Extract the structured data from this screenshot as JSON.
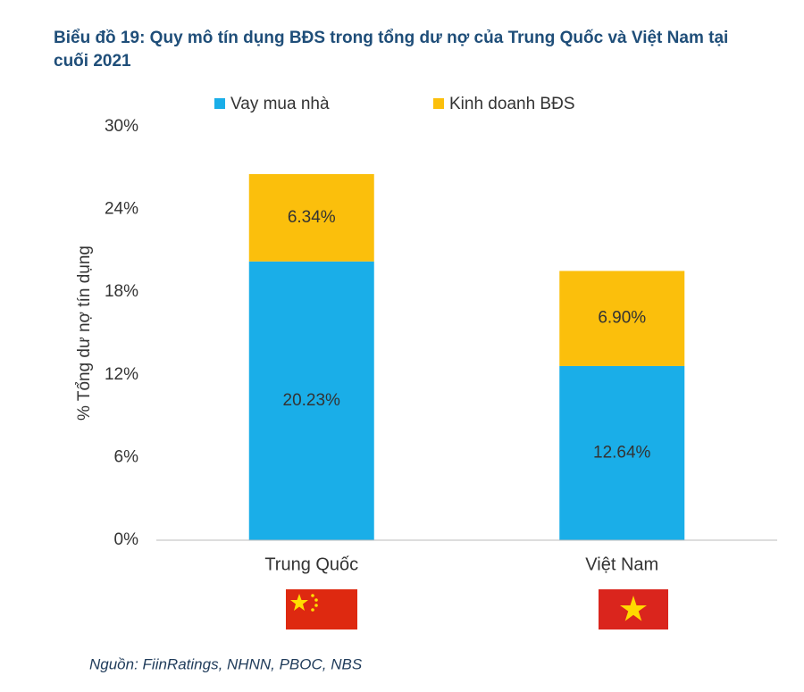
{
  "chart_data": {
    "type": "stacked_bar",
    "title": "Biểu đồ 19: Quy mô tín dụng BĐS trong tổng dư nợ của Trung Quốc và Việt Nam tại cuối 2021",
    "ylabel": "% Tổng dư nợ tín dụng",
    "categories": [
      "Trung Quốc",
      "Việt Nam"
    ],
    "series": [
      {
        "name": "Vay mua nhà",
        "color": "#1aaee8",
        "values": [
          20.23,
          12.64
        ],
        "value_labels": [
          "20.23%",
          "12.64%"
        ]
      },
      {
        "name": "Kinh doanh BĐS",
        "color": "#fbbf0c",
        "values": [
          6.34,
          6.9
        ],
        "value_labels": [
          "6.34%",
          "6.90%"
        ]
      }
    ],
    "ylim": [
      0,
      30
    ],
    "yticks": [
      {
        "value": 0,
        "label": "0%"
      },
      {
        "value": 6,
        "label": "6%"
      },
      {
        "value": 12,
        "label": "12%"
      },
      {
        "value": 18,
        "label": "18%"
      },
      {
        "value": 24,
        "label": "24%"
      },
      {
        "value": 30,
        "label": "30%"
      }
    ],
    "legend": "top",
    "grid": false,
    "source": "Nguồn: FiinRatings, NHNN, PBOC, NBS"
  }
}
